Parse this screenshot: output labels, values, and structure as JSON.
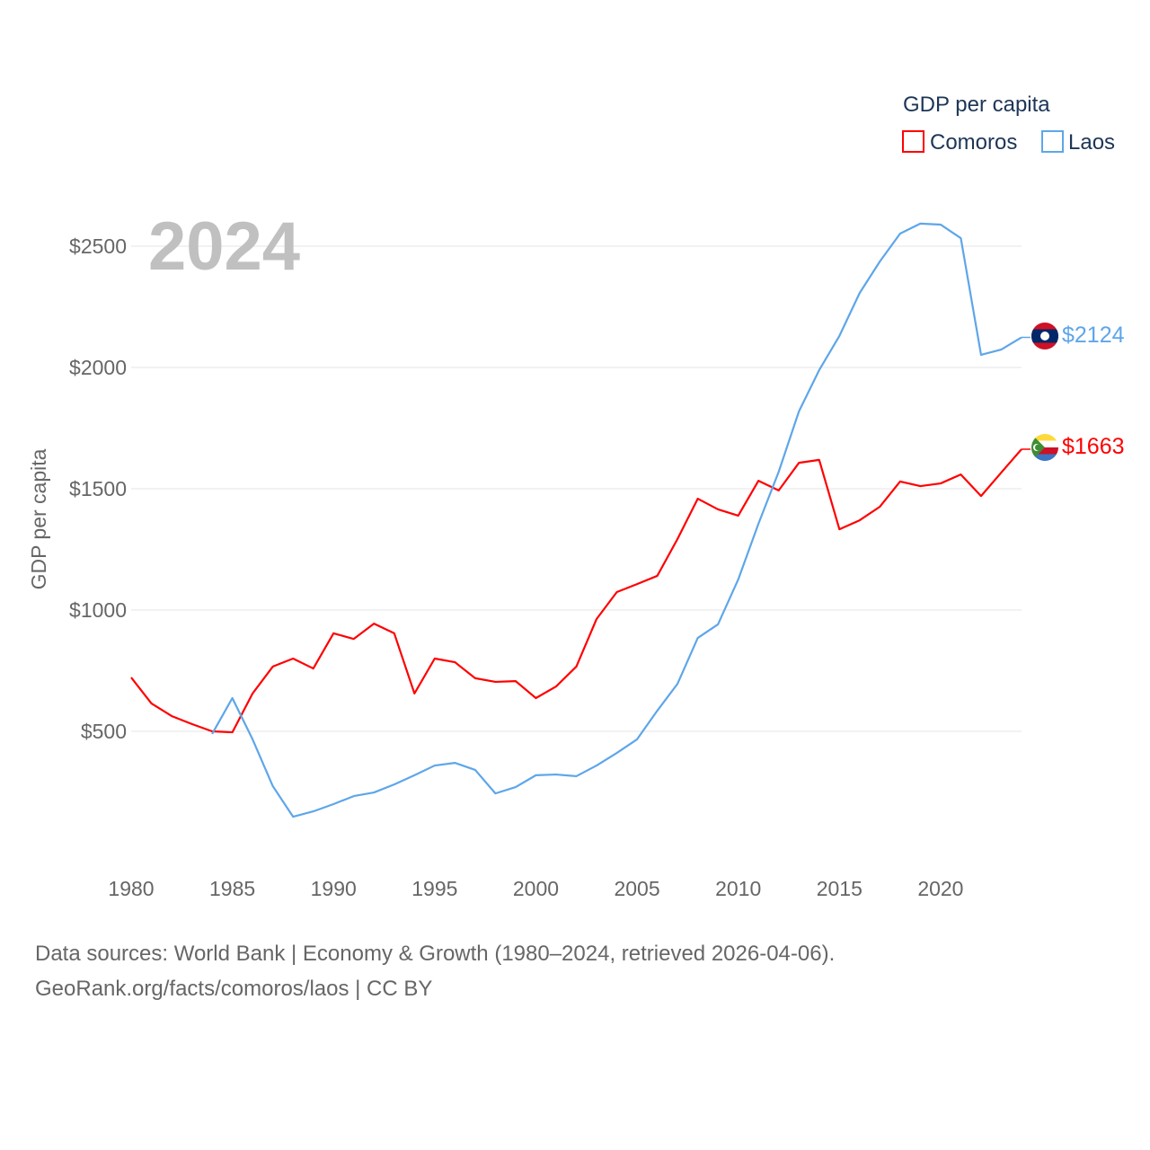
{
  "chart_data": {
    "type": "line",
    "title": "",
    "year_label": "2024",
    "ylabel": "GDP per capita",
    "xlabel": "",
    "ylim": [
      0,
      2750
    ],
    "xlim": [
      1980,
      2024
    ],
    "x_ticks": [
      1980,
      1985,
      1990,
      1995,
      2000,
      2005,
      2010,
      2015,
      2020
    ],
    "x_tick_labels": [
      "1980",
      "1985",
      "1990",
      "1995",
      "2000",
      "2005",
      "2010",
      "2015",
      "2020"
    ],
    "y_ticks": [
      500,
      1000,
      1500,
      2000,
      2500
    ],
    "y_tick_labels": [
      "$500",
      "$1000",
      "$1500",
      "$2000",
      "$2500"
    ],
    "grid": true,
    "legend": {
      "title": "GDP per capita",
      "placement": "top-right"
    },
    "series": [
      {
        "name": "Comoros",
        "color": "#ff0000",
        "end_label": "$1663",
        "x_start": 1980,
        "values": [
          722,
          615,
          563,
          530,
          500,
          496,
          656,
          767,
          800,
          759,
          904,
          881,
          944,
          904,
          656,
          800,
          785,
          719,
          704,
          707,
          637,
          685,
          767,
          963,
          1074,
          1107,
          1141,
          1293,
          1459,
          1415,
          1389,
          1533,
          1493,
          1607,
          1619,
          1333,
          1370,
          1426,
          1530,
          1511,
          1522,
          1559,
          1470,
          1567,
          1663
        ]
      },
      {
        "name": "Laos",
        "color": "#5ea6e9",
        "end_label": "$2124",
        "x_start": 1984,
        "values": [
          489,
          637,
          467,
          274,
          148,
          170,
          200,
          233,
          248,
          281,
          319,
          359,
          370,
          341,
          244,
          270,
          319,
          322,
          315,
          359,
          411,
          467,
          585,
          696,
          885,
          941,
          1126,
          1356,
          1570,
          1819,
          1989,
          2130,
          2307,
          2437,
          2552,
          2593,
          2589,
          2533,
          2052,
          2074,
          2124
        ]
      }
    ]
  },
  "footer": {
    "line1": "Data sources: World Bank | Economy & Growth (1980–2024, retrieved 2026-04-06).",
    "line2": "GeoRank.org/facts/comoros/laos | CC BY"
  }
}
